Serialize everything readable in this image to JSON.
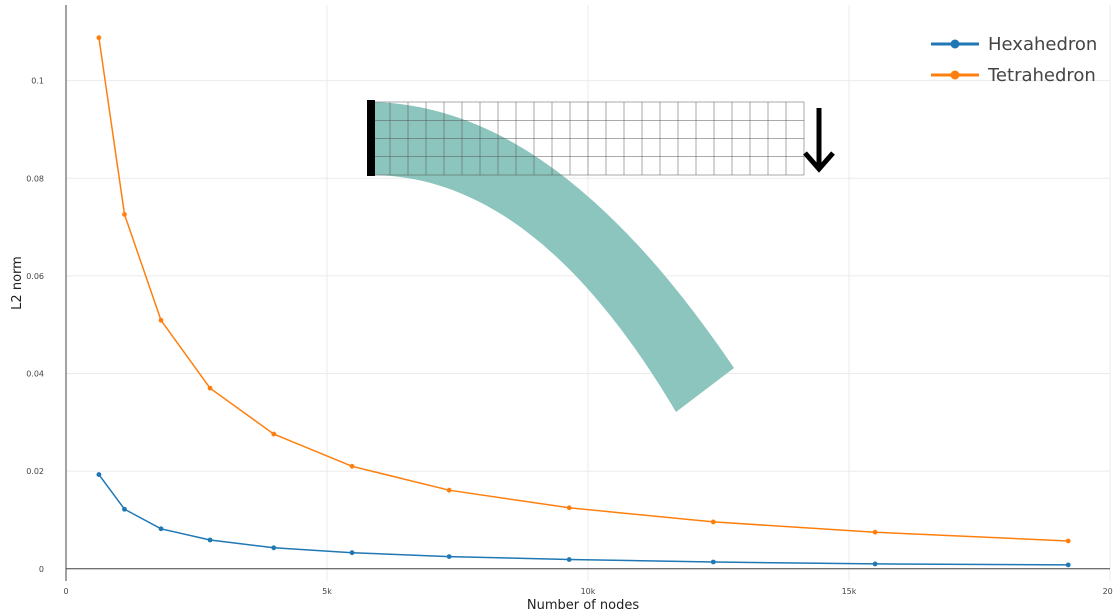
{
  "chart_data": {
    "type": "line",
    "title": "",
    "xlabel": "Number of nodes",
    "ylabel": "L2 norm",
    "xlim": [
      0,
      20000
    ],
    "ylim": [
      -0.0025,
      0.1155
    ],
    "x_ticks": [
      {
        "value": 0,
        "label": "0"
      },
      {
        "value": 5000,
        "label": "5k"
      },
      {
        "value": 10000,
        "label": "10k"
      },
      {
        "value": 15000,
        "label": "15k"
      },
      {
        "value": 20000,
        "label": "20k"
      }
    ],
    "y_ticks": [
      {
        "value": 0,
        "label": "0"
      },
      {
        "value": 0.02,
        "label": "0.02"
      },
      {
        "value": 0.04,
        "label": "0.04"
      },
      {
        "value": 0.06,
        "label": "0.06"
      },
      {
        "value": 0.08,
        "label": "0.08"
      },
      {
        "value": 0.1,
        "label": "0.1"
      }
    ],
    "grid": true,
    "legend_position": "top-right",
    "series": [
      {
        "name": "Hexahedron",
        "color": "#1f77b4",
        "x": [
          630,
          1120,
          1820,
          2760,
          3980,
          5480,
          7340,
          9640,
          12400,
          15500,
          19200
        ],
        "y": [
          0.0193,
          0.0122,
          0.0082,
          0.0059,
          0.0043,
          0.0033,
          0.0025,
          0.0019,
          0.0014,
          0.001,
          0.0008
        ]
      },
      {
        "name": "Tetrahedron",
        "color": "#ff7f0e",
        "x": [
          630,
          1120,
          1820,
          2760,
          3980,
          5480,
          7340,
          9640,
          12400,
          15500,
          19200
        ],
        "y": [
          0.1088,
          0.0726,
          0.0509,
          0.037,
          0.0276,
          0.021,
          0.0161,
          0.0125,
          0.0096,
          0.0075,
          0.0057
        ]
      }
    ],
    "inset": {
      "description_color": "#8bc5bd",
      "undeformed_mesh_cols": 24,
      "undeformed_mesh_rows": 4
    }
  }
}
